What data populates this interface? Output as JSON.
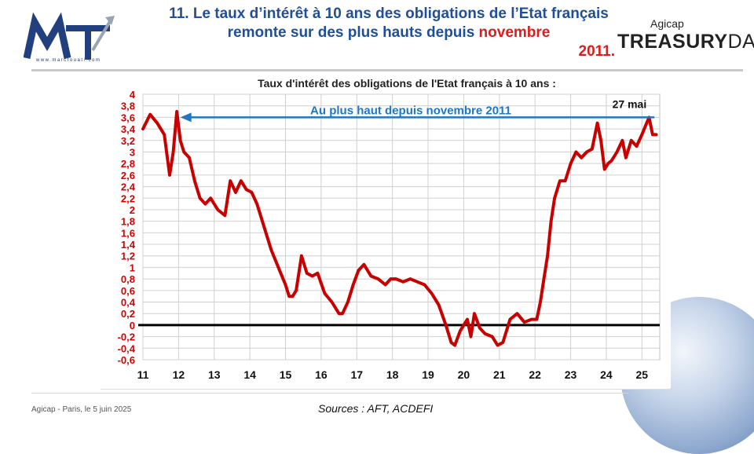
{
  "header": {
    "title_main": "11. Le taux d’intérêt à 10 ans des obligations de l’Etat français remonte sur des plus hauts depuis ",
    "title_accent": "novembre",
    "title_tail": "2011.",
    "logo_url_text": "www.marctouati.com"
  },
  "brand": {
    "small": "Agicap",
    "big_bold": "TREASURY",
    "big_light": "DAY"
  },
  "footer": {
    "left": "Agicap - Paris, le 5 juin 2025",
    "source": "Sources : AFT, ACDEFI"
  },
  "chart_data": {
    "type": "line",
    "title": "Taux d'intérêt des obligations de l'Etat français à 10 ans :",
    "annotation": "Au plus haut depuis novembre 2011",
    "annotation_right": "27 mai",
    "annotation_level": 3.6,
    "ylim": [
      -0.6,
      4
    ],
    "yticks": [
      "4",
      "3,8",
      "3,6",
      "3,4",
      "3,2",
      "3",
      "2,8",
      "2,6",
      "2,4",
      "2,2",
      "2",
      "1,8",
      "1,6",
      "1,4",
      "1,2",
      "1",
      "0,8",
      "0,6",
      "0,4",
      "0,2",
      "0",
      "-0,2",
      "-0,4",
      "-0,6"
    ],
    "xlim": [
      2011,
      2025.5
    ],
    "xticks": [
      "11",
      "12",
      "13",
      "14",
      "15",
      "16",
      "17",
      "18",
      "19",
      "20",
      "21",
      "22",
      "23",
      "24",
      "25"
    ],
    "colors": {
      "series": "#c80000",
      "axis_labels": "#d40000",
      "arrow": "#1f77c4",
      "zero_line": "#000000"
    },
    "series": [
      {
        "x": [
          2011.0,
          2011.2,
          2011.4,
          2011.6,
          2011.75,
          2011.85,
          2011.95,
          2012.05,
          2012.15,
          2012.3,
          2012.45,
          2012.6,
          2012.75,
          2012.9,
          2013.1,
          2013.3,
          2013.45,
          2013.6,
          2013.75,
          2013.9,
          2014.05,
          2014.2,
          2014.4,
          2014.6,
          2014.8,
          2015.0,
          2015.1,
          2015.2,
          2015.3,
          2015.45,
          2015.6,
          2015.75,
          2015.9,
          2016.1,
          2016.3,
          2016.5,
          2016.6,
          2016.75,
          2016.9,
          2017.05,
          2017.2,
          2017.4,
          2017.6,
          2017.8,
          2017.95,
          2018.1,
          2018.3,
          2018.5,
          2018.7,
          2018.9,
          2019.1,
          2019.3,
          2019.5,
          2019.65,
          2019.75,
          2019.9,
          2020.0,
          2020.1,
          2020.2,
          2020.3,
          2020.45,
          2020.6,
          2020.8,
          2020.95,
          2021.1,
          2021.3,
          2021.5,
          2021.7,
          2021.9,
          2022.05,
          2022.15,
          2022.25,
          2022.35,
          2022.45,
          2022.55,
          2022.7,
          2022.85,
          2023.0,
          2023.15,
          2023.3,
          2023.45,
          2023.6,
          2023.75,
          2023.85,
          2023.95,
          2024.05,
          2024.15,
          2024.3,
          2024.45,
          2024.55,
          2024.7,
          2024.85,
          2025.0,
          2025.1,
          2025.2,
          2025.3,
          2025.4
        ],
        "y": [
          3.4,
          3.65,
          3.5,
          3.3,
          2.6,
          3.0,
          3.7,
          3.2,
          3.0,
          2.9,
          2.5,
          2.2,
          2.1,
          2.2,
          2.0,
          1.9,
          2.5,
          2.3,
          2.5,
          2.35,
          2.3,
          2.1,
          1.7,
          1.3,
          1.0,
          0.7,
          0.5,
          0.5,
          0.6,
          1.2,
          0.9,
          0.85,
          0.9,
          0.55,
          0.4,
          0.2,
          0.2,
          0.4,
          0.7,
          0.95,
          1.05,
          0.85,
          0.8,
          0.7,
          0.8,
          0.8,
          0.75,
          0.8,
          0.75,
          0.7,
          0.55,
          0.35,
          0.0,
          -0.3,
          -0.35,
          -0.1,
          0.0,
          0.1,
          -0.2,
          0.2,
          -0.05,
          -0.15,
          -0.2,
          -0.35,
          -0.3,
          0.1,
          0.2,
          0.05,
          0.1,
          0.1,
          0.4,
          0.8,
          1.2,
          1.8,
          2.2,
          2.5,
          2.5,
          2.8,
          3.0,
          2.9,
          3.0,
          3.05,
          3.5,
          3.2,
          2.7,
          2.8,
          2.85,
          3.0,
          3.2,
          2.9,
          3.2,
          3.1,
          3.3,
          3.45,
          3.6,
          3.3,
          3.3
        ]
      }
    ]
  }
}
